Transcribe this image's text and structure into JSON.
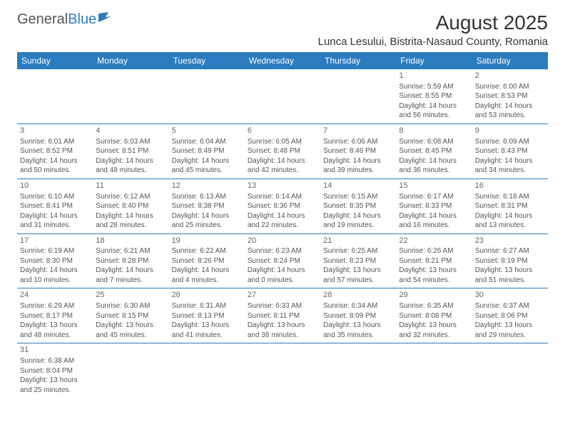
{
  "logo": {
    "text1": "General",
    "text2": "Blue"
  },
  "title": "August 2025",
  "location": "Lunca Lesului, Bistrita-Nasaud County, Romania",
  "colors": {
    "header_bg": "#2b7bbf",
    "header_text": "#ffffff",
    "text": "#555555",
    "border": "#2b7bbf"
  },
  "days_of_week": [
    "Sunday",
    "Monday",
    "Tuesday",
    "Wednesday",
    "Thursday",
    "Friday",
    "Saturday"
  ],
  "weeks": [
    [
      null,
      null,
      null,
      null,
      null,
      {
        "n": "1",
        "sr": "Sunrise: 5:59 AM",
        "ss": "Sunset: 8:55 PM",
        "dl": "Daylight: 14 hours and 56 minutes."
      },
      {
        "n": "2",
        "sr": "Sunrise: 6:00 AM",
        "ss": "Sunset: 8:53 PM",
        "dl": "Daylight: 14 hours and 53 minutes."
      }
    ],
    [
      {
        "n": "3",
        "sr": "Sunrise: 6:01 AM",
        "ss": "Sunset: 8:52 PM",
        "dl": "Daylight: 14 hours and 50 minutes."
      },
      {
        "n": "4",
        "sr": "Sunrise: 6:03 AM",
        "ss": "Sunset: 8:51 PM",
        "dl": "Daylight: 14 hours and 48 minutes."
      },
      {
        "n": "5",
        "sr": "Sunrise: 6:04 AM",
        "ss": "Sunset: 8:49 PM",
        "dl": "Daylight: 14 hours and 45 minutes."
      },
      {
        "n": "6",
        "sr": "Sunrise: 6:05 AM",
        "ss": "Sunset: 8:48 PM",
        "dl": "Daylight: 14 hours and 42 minutes."
      },
      {
        "n": "7",
        "sr": "Sunrise: 6:06 AM",
        "ss": "Sunset: 8:46 PM",
        "dl": "Daylight: 14 hours and 39 minutes."
      },
      {
        "n": "8",
        "sr": "Sunrise: 6:08 AM",
        "ss": "Sunset: 8:45 PM",
        "dl": "Daylight: 14 hours and 36 minutes."
      },
      {
        "n": "9",
        "sr": "Sunrise: 6:09 AM",
        "ss": "Sunset: 8:43 PM",
        "dl": "Daylight: 14 hours and 34 minutes."
      }
    ],
    [
      {
        "n": "10",
        "sr": "Sunrise: 6:10 AM",
        "ss": "Sunset: 8:41 PM",
        "dl": "Daylight: 14 hours and 31 minutes."
      },
      {
        "n": "11",
        "sr": "Sunrise: 6:12 AM",
        "ss": "Sunset: 8:40 PM",
        "dl": "Daylight: 14 hours and 28 minutes."
      },
      {
        "n": "12",
        "sr": "Sunrise: 6:13 AM",
        "ss": "Sunset: 8:38 PM",
        "dl": "Daylight: 14 hours and 25 minutes."
      },
      {
        "n": "13",
        "sr": "Sunrise: 6:14 AM",
        "ss": "Sunset: 8:36 PM",
        "dl": "Daylight: 14 hours and 22 minutes."
      },
      {
        "n": "14",
        "sr": "Sunrise: 6:15 AM",
        "ss": "Sunset: 8:35 PM",
        "dl": "Daylight: 14 hours and 19 minutes."
      },
      {
        "n": "15",
        "sr": "Sunrise: 6:17 AM",
        "ss": "Sunset: 8:33 PM",
        "dl": "Daylight: 14 hours and 16 minutes."
      },
      {
        "n": "16",
        "sr": "Sunrise: 6:18 AM",
        "ss": "Sunset: 8:31 PM",
        "dl": "Daylight: 14 hours and 13 minutes."
      }
    ],
    [
      {
        "n": "17",
        "sr": "Sunrise: 6:19 AM",
        "ss": "Sunset: 8:30 PM",
        "dl": "Daylight: 14 hours and 10 minutes."
      },
      {
        "n": "18",
        "sr": "Sunrise: 6:21 AM",
        "ss": "Sunset: 8:28 PM",
        "dl": "Daylight: 14 hours and 7 minutes."
      },
      {
        "n": "19",
        "sr": "Sunrise: 6:22 AM",
        "ss": "Sunset: 8:26 PM",
        "dl": "Daylight: 14 hours and 4 minutes."
      },
      {
        "n": "20",
        "sr": "Sunrise: 6:23 AM",
        "ss": "Sunset: 8:24 PM",
        "dl": "Daylight: 14 hours and 0 minutes."
      },
      {
        "n": "21",
        "sr": "Sunrise: 6:25 AM",
        "ss": "Sunset: 8:23 PM",
        "dl": "Daylight: 13 hours and 57 minutes."
      },
      {
        "n": "22",
        "sr": "Sunrise: 6:26 AM",
        "ss": "Sunset: 8:21 PM",
        "dl": "Daylight: 13 hours and 54 minutes."
      },
      {
        "n": "23",
        "sr": "Sunrise: 6:27 AM",
        "ss": "Sunset: 8:19 PM",
        "dl": "Daylight: 13 hours and 51 minutes."
      }
    ],
    [
      {
        "n": "24",
        "sr": "Sunrise: 6:29 AM",
        "ss": "Sunset: 8:17 PM",
        "dl": "Daylight: 13 hours and 48 minutes."
      },
      {
        "n": "25",
        "sr": "Sunrise: 6:30 AM",
        "ss": "Sunset: 8:15 PM",
        "dl": "Daylight: 13 hours and 45 minutes."
      },
      {
        "n": "26",
        "sr": "Sunrise: 6:31 AM",
        "ss": "Sunset: 8:13 PM",
        "dl": "Daylight: 13 hours and 41 minutes."
      },
      {
        "n": "27",
        "sr": "Sunrise: 6:33 AM",
        "ss": "Sunset: 8:11 PM",
        "dl": "Daylight: 13 hours and 38 minutes."
      },
      {
        "n": "28",
        "sr": "Sunrise: 6:34 AM",
        "ss": "Sunset: 8:09 PM",
        "dl": "Daylight: 13 hours and 35 minutes."
      },
      {
        "n": "29",
        "sr": "Sunrise: 6:35 AM",
        "ss": "Sunset: 8:08 PM",
        "dl": "Daylight: 13 hours and 32 minutes."
      },
      {
        "n": "30",
        "sr": "Sunrise: 6:37 AM",
        "ss": "Sunset: 8:06 PM",
        "dl": "Daylight: 13 hours and 29 minutes."
      }
    ],
    [
      {
        "n": "31",
        "sr": "Sunrise: 6:38 AM",
        "ss": "Sunset: 8:04 PM",
        "dl": "Daylight: 13 hours and 25 minutes."
      },
      null,
      null,
      null,
      null,
      null,
      null
    ]
  ]
}
